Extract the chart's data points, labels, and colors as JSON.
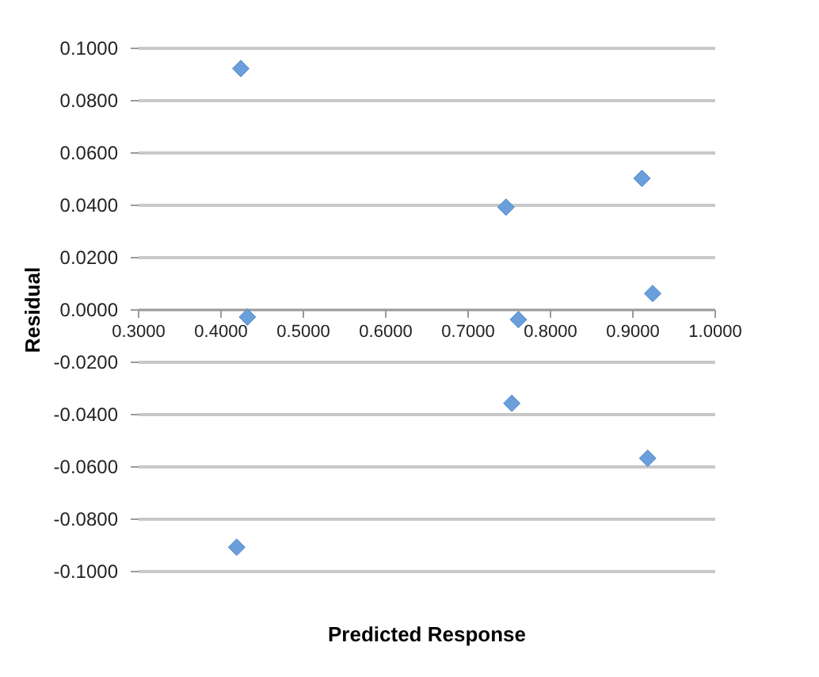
{
  "chart_data": {
    "type": "scatter",
    "xlabel": "Predicted Response",
    "ylabel": "Residual",
    "x": [
      0.425,
      0.433,
      0.747,
      0.762,
      0.912,
      0.925,
      0.754,
      0.919,
      0.42
    ],
    "series": [
      {
        "color": "#6a9fdc",
        "values": [
          0.092,
          -0.003,
          0.039,
          -0.004,
          0.05,
          0.006,
          -0.036,
          -0.057,
          -0.091
        ]
      }
    ],
    "xlim": [
      0.3,
      1.0
    ],
    "xticks": [
      {
        "value": 0.3,
        "label": "0.3000"
      },
      {
        "value": 0.4,
        "label": "0.4000"
      },
      {
        "value": 0.5,
        "label": "0.5000"
      },
      {
        "value": 0.6,
        "label": "0.6000"
      },
      {
        "value": 0.7,
        "label": "0.7000"
      },
      {
        "value": 0.8,
        "label": "0.8000"
      },
      {
        "value": 0.9,
        "label": "0.9000"
      },
      {
        "value": 1.0,
        "label": "1.0000"
      }
    ],
    "ylim": [
      -0.1,
      0.1
    ],
    "yticks": [
      {
        "value": -0.1,
        "label": "-0.1000"
      },
      {
        "value": -0.08,
        "label": "-0.0800"
      },
      {
        "value": -0.06,
        "label": "-0.0600"
      },
      {
        "value": -0.04,
        "label": "-0.0400"
      },
      {
        "value": -0.02,
        "label": "-0.0200"
      },
      {
        "value": 0,
        "label": "0.0000"
      },
      {
        "value": 0.02,
        "label": "0.0200"
      },
      {
        "value": 0.04,
        "label": "0.0400"
      },
      {
        "value": 0.06,
        "label": "0.0600"
      },
      {
        "value": 0.08,
        "label": "0.0800"
      },
      {
        "value": 0.1,
        "label": "0.1000"
      }
    ],
    "grid": "y",
    "marker": "diamond"
  }
}
